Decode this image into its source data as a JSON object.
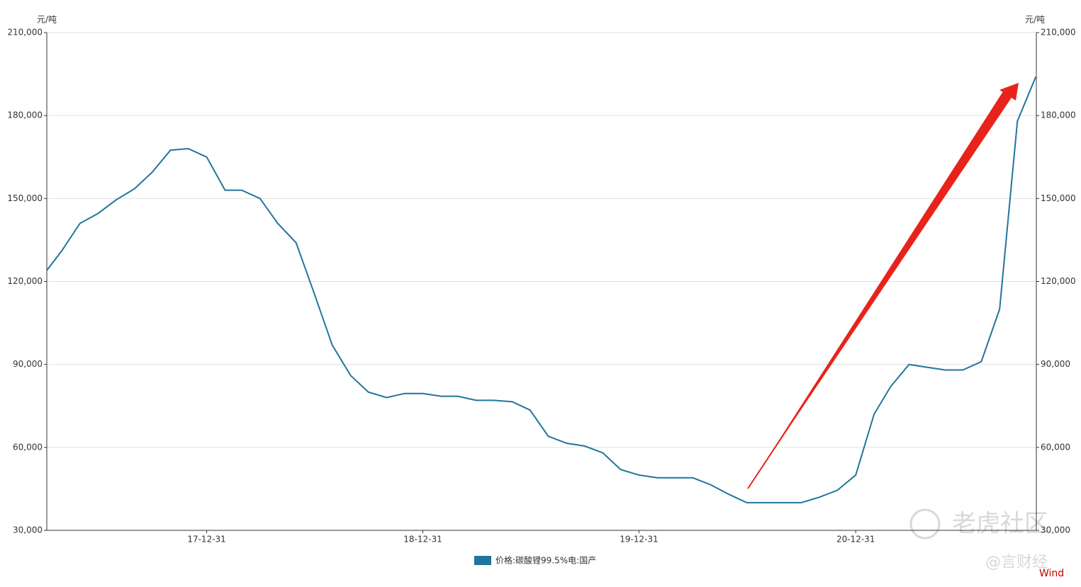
{
  "chart_data": {
    "type": "line",
    "ylabel": "元/吨",
    "y2label": "元/吨",
    "x": [
      "17-04-05",
      "17-04-30",
      "17-05-31",
      "17-06-30",
      "17-07-31",
      "17-08-31",
      "17-09-30",
      "17-10-31",
      "17-11-30",
      "17-12-31",
      "18-01-31",
      "18-02-28",
      "18-03-31",
      "18-04-30",
      "18-05-31",
      "18-06-30",
      "18-07-31",
      "18-08-31",
      "18-09-30",
      "18-10-31",
      "18-11-30",
      "18-12-31",
      "19-01-31",
      "19-02-28",
      "19-03-31",
      "19-04-30",
      "19-05-31",
      "19-06-30",
      "19-07-31",
      "19-08-31",
      "19-09-30",
      "19-10-31",
      "19-11-30",
      "19-12-31",
      "20-01-31",
      "20-02-29",
      "20-03-31",
      "20-04-30",
      "20-05-31",
      "20-06-30",
      "20-07-31",
      "20-08-31",
      "20-09-30",
      "20-10-31",
      "20-11-30",
      "20-12-31",
      "21-01-31",
      "21-02-28",
      "21-03-31",
      "21-04-30",
      "21-05-31",
      "21-06-30",
      "21-07-31",
      "21-08-31",
      "21-09-30",
      "21-10-31"
    ],
    "series": [
      {
        "name": "价格:碳酸锂99.5%电:国产",
        "color": "#21759b",
        "values": [
          124000,
          131000,
          141000,
          144500,
          149500,
          153500,
          159500,
          167500,
          168000,
          165000,
          153000,
          153000,
          150000,
          141000,
          134000,
          116000,
          97000,
          86000,
          80000,
          78000,
          79500,
          79500,
          78500,
          78500,
          77000,
          77000,
          76500,
          73500,
          64000,
          61500,
          60500,
          58000,
          52000,
          50000,
          49000,
          49000,
          49000,
          46500,
          43000,
          40000,
          40000,
          40000,
          40000,
          42000,
          44500,
          50000,
          72000,
          82000,
          90000,
          89000,
          88000,
          88000,
          91000,
          110000,
          178000,
          194000
        ]
      }
    ],
    "xlim": [
      "17-04-05",
      "21-11-01"
    ],
    "xticks": [
      "17-12-31",
      "18-12-31",
      "19-12-31",
      "20-12-31"
    ],
    "ylim": [
      30000,
      210000
    ],
    "yticks": [
      {
        "value": 30000,
        "label": "30,000"
      },
      {
        "value": 60000,
        "label": "60,000"
      },
      {
        "value": 90000,
        "label": "90,000"
      },
      {
        "value": 120000,
        "label": "120,000"
      },
      {
        "value": 150000,
        "label": "150,000"
      },
      {
        "value": 180000,
        "label": "180,000"
      },
      {
        "value": 210000,
        "label": "210,000"
      }
    ],
    "y2lim": [
      30000,
      210000
    ],
    "y2ticks": [
      {
        "value": 30000,
        "label": "30,000"
      },
      {
        "value": 60000,
        "label": "60,000"
      },
      {
        "value": 90000,
        "label": "90,000"
      },
      {
        "value": 120000,
        "label": "120,000"
      },
      {
        "value": 150000,
        "label": "150,000"
      },
      {
        "value": 180000,
        "label": "180,000"
      },
      {
        "value": 210000,
        "label": "210,000"
      }
    ],
    "grid": true,
    "watermarks": [
      "老虎社区",
      "@言财经"
    ],
    "source": "Wind"
  }
}
